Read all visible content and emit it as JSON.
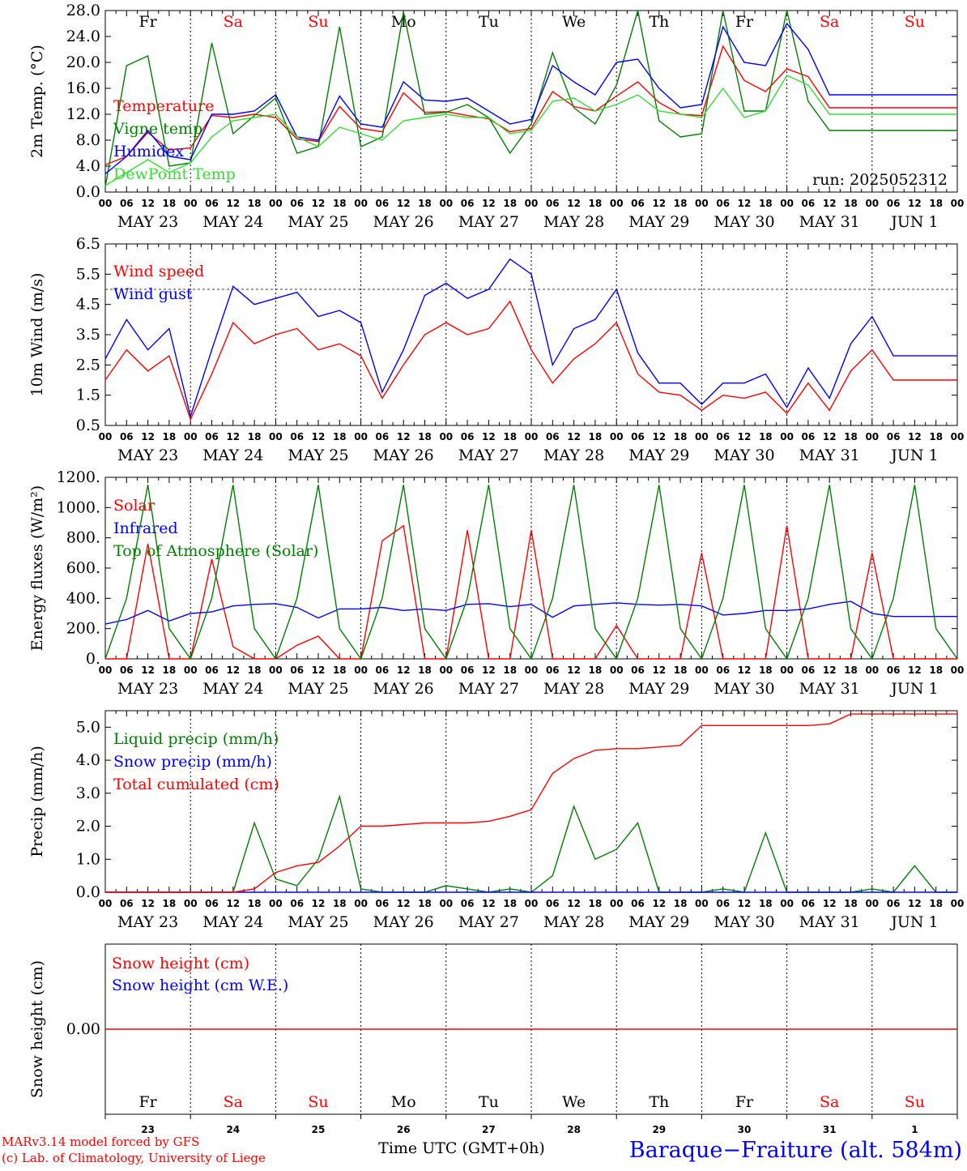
{
  "station": "Baraque−Fraiture (alt. 584m)",
  "run": "run: 2025052312",
  "time_axis_label": "Time UTC (GMT+0h)",
  "credits": [
    "MARv3.14 model forced by GFS",
    "(c) Lab. of Climatology, University of Liege"
  ],
  "colors": {
    "red": "#ff0000",
    "green": "#008000",
    "blue": "#0000ff",
    "lightgreen": "#33dd33"
  },
  "days": [
    {
      "wd": "Fr",
      "date": "MAY 23",
      "num": "23",
      "weekend": false
    },
    {
      "wd": "Sa",
      "date": "MAY 24",
      "num": "24",
      "weekend": true
    },
    {
      "wd": "Su",
      "date": "MAY 25",
      "num": "25",
      "weekend": true
    },
    {
      "wd": "Mo",
      "date": "MAY 26",
      "num": "26",
      "weekend": false
    },
    {
      "wd": "Tu",
      "date": "MAY 27",
      "num": "27",
      "weekend": false
    },
    {
      "wd": "We",
      "date": "MAY 28",
      "num": "28",
      "weekend": false
    },
    {
      "wd": "Th",
      "date": "MAY 29",
      "num": "29",
      "weekend": false
    },
    {
      "wd": "Fr",
      "date": "MAY 30",
      "num": "30",
      "weekend": false
    },
    {
      "wd": "Sa",
      "date": "MAY 31",
      "num": "31",
      "weekend": true
    },
    {
      "wd": "Su",
      "date": "JUN  1",
      "num": "1",
      "weekend": true
    }
  ],
  "hour_labels": [
    "00",
    "06",
    "12",
    "18"
  ],
  "chart_data": [
    {
      "type": "line",
      "ylabel": "2m Temp. (°C)",
      "ylim": [
        0,
        28
      ],
      "yticks": [
        "0.0",
        "4.0",
        "8.0",
        "12.0",
        "16.0",
        "20.0",
        "24.0",
        "28.0"
      ],
      "x_hours": [
        0,
        6,
        12,
        18,
        24,
        30,
        36,
        42,
        48,
        54,
        60,
        66,
        72,
        78,
        84,
        90,
        96,
        102,
        108,
        114,
        120,
        126,
        132,
        138,
        144,
        150,
        156,
        162,
        168,
        174,
        180,
        186,
        192,
        198,
        204,
        210,
        216,
        222,
        228,
        234,
        240
      ],
      "series": [
        {
          "name": "Temperature",
          "color": "#ff0000",
          "values": [
            4.2,
            5.5,
            9.2,
            6.5,
            6.8,
            11.8,
            11.5,
            12.0,
            11.5,
            8.2,
            7.8,
            13.2,
            9.8,
            9.3,
            15.3,
            12.3,
            12.4,
            11.8,
            11.3,
            9.3,
            9.8,
            15.5,
            13.2,
            12.5,
            14.8,
            17.0,
            13.8,
            12.0,
            11.8,
            22.5,
            17.2,
            15.5,
            19.0,
            17.8,
            13.0,
            13.0,
            13.0,
            13.0,
            13.0,
            13.0,
            13.0
          ]
        },
        {
          "name": "Vigne temp",
          "color": "#008000",
          "values": [
            0.8,
            19.5,
            21.0,
            4.0,
            4.5,
            23.0,
            9.0,
            11.8,
            14.5,
            6.0,
            7.0,
            25.5,
            7.0,
            8.5,
            27.8,
            12.0,
            12.3,
            13.5,
            11.5,
            6.0,
            10.5,
            21.5,
            13.0,
            10.5,
            16.5,
            28.0,
            11.0,
            8.5,
            9.0,
            28.0,
            12.5,
            12.5,
            28.0,
            14.0,
            9.5,
            9.5,
            9.5,
            9.5,
            9.5,
            9.5,
            9.5
          ]
        },
        {
          "name": "Humidex",
          "color": "#0000ff",
          "values": [
            2.8,
            5.5,
            9.5,
            5.5,
            5.0,
            12.0,
            12.0,
            12.5,
            15.0,
            8.5,
            8.0,
            14.8,
            10.5,
            10.0,
            17.0,
            14.2,
            14.0,
            14.5,
            12.5,
            10.5,
            11.2,
            19.5,
            17.0,
            15.0,
            20.0,
            20.5,
            16.0,
            13.0,
            13.5,
            25.5,
            20.0,
            19.5,
            26.0,
            22.0,
            15.0,
            15.0,
            15.0,
            15.0,
            15.0,
            15.0,
            15.0
          ]
        },
        {
          "name": "DewPoint Temp",
          "color": "#33dd33",
          "values": [
            1.0,
            3.0,
            5.0,
            3.0,
            4.5,
            8.5,
            11.0,
            11.5,
            12.0,
            8.5,
            7.0,
            10.0,
            9.0,
            8.0,
            11.0,
            11.5,
            12.0,
            11.5,
            11.5,
            9.0,
            9.5,
            14.0,
            14.5,
            12.5,
            13.5,
            15.0,
            12.5,
            12.0,
            11.5,
            16.0,
            11.5,
            12.5,
            18.0,
            16.5,
            12.0,
            12.0,
            12.0,
            12.0,
            12.0,
            12.0,
            12.0
          ]
        }
      ]
    },
    {
      "type": "line",
      "ylabel": "10m Wind (m/s)",
      "ylim": [
        0.5,
        6.5
      ],
      "yticks": [
        "0.5",
        "1.5",
        "2.5",
        "3.5",
        "4.5",
        "5.5",
        "6.5"
      ],
      "hline": 5.0,
      "x_hours": [
        0,
        6,
        12,
        18,
        24,
        30,
        36,
        42,
        48,
        54,
        60,
        66,
        72,
        78,
        84,
        90,
        96,
        102,
        108,
        114,
        120,
        126,
        132,
        138,
        144,
        150,
        156,
        162,
        168,
        174,
        180,
        186,
        192,
        198,
        204,
        210,
        216,
        222,
        228,
        234,
        240
      ],
      "series": [
        {
          "name": "Wind speed",
          "color": "#ff0000",
          "values": [
            2.0,
            3.0,
            2.3,
            2.8,
            0.7,
            2.2,
            3.9,
            3.2,
            3.5,
            3.7,
            3.0,
            3.2,
            2.8,
            1.4,
            2.5,
            3.5,
            3.9,
            3.5,
            3.7,
            4.6,
            3.0,
            1.9,
            2.7,
            3.2,
            3.9,
            2.2,
            1.6,
            1.5,
            1.0,
            1.5,
            1.4,
            1.6,
            0.9,
            1.9,
            1.0,
            2.3,
            3.0,
            2.0,
            2.0,
            2.0,
            2.0
          ]
        },
        {
          "name": "Wind gust",
          "color": "#0000ff",
          "values": [
            2.7,
            4.0,
            3.0,
            3.7,
            0.8,
            3.0,
            5.1,
            4.5,
            4.7,
            4.9,
            4.1,
            4.3,
            3.9,
            1.6,
            3.0,
            4.8,
            5.2,
            4.7,
            5.0,
            6.0,
            5.5,
            2.5,
            3.7,
            4.0,
            5.0,
            2.9,
            1.9,
            1.9,
            1.2,
            1.9,
            1.9,
            2.2,
            1.1,
            2.4,
            1.4,
            3.2,
            4.1,
            2.8,
            2.8,
            2.8,
            2.8
          ]
        }
      ]
    },
    {
      "type": "line",
      "ylabel": "Energy fluxes (W/m²)",
      "ylim": [
        0,
        1200
      ],
      "yticks": [
        "0.",
        "200.",
        "400.",
        "600.",
        "800.",
        "1000.",
        "1200."
      ],
      "x_hours": [
        0,
        6,
        12,
        18,
        24,
        30,
        36,
        42,
        48,
        54,
        60,
        66,
        72,
        78,
        84,
        90,
        96,
        102,
        108,
        114,
        120,
        126,
        132,
        138,
        144,
        150,
        156,
        162,
        168,
        174,
        180,
        186,
        192,
        198,
        204,
        210,
        216,
        222,
        228,
        234,
        240
      ],
      "series": [
        {
          "name": "Solar",
          "color": "#ff0000",
          "values": [
            0,
            0,
            760,
            0,
            0,
            660,
            80,
            0,
            0,
            90,
            150,
            0,
            0,
            780,
            880,
            0,
            0,
            850,
            0,
            0,
            850,
            0,
            0,
            0,
            220,
            0,
            0,
            0,
            700,
            0,
            0,
            0,
            880,
            0,
            0,
            0,
            700,
            0,
            0,
            0,
            0
          ]
        },
        {
          "name": "Infrared",
          "color": "#0000ff",
          "values": [
            230,
            260,
            320,
            250,
            300,
            310,
            350,
            360,
            365,
            340,
            270,
            330,
            330,
            340,
            320,
            330,
            320,
            360,
            365,
            345,
            360,
            275,
            350,
            360,
            370,
            360,
            355,
            360,
            350,
            290,
            300,
            320,
            320,
            330,
            360,
            380,
            300,
            280,
            280,
            280,
            280
          ]
        },
        {
          "name": "Top of Atmosphere (Solar)",
          "color": "#008000",
          "values": [
            0,
            400,
            1150,
            200,
            0,
            400,
            1150,
            200,
            0,
            400,
            1150,
            200,
            0,
            400,
            1150,
            200,
            0,
            400,
            1150,
            200,
            0,
            400,
            1150,
            200,
            0,
            400,
            1150,
            200,
            0,
            400,
            1150,
            200,
            0,
            400,
            1150,
            200,
            0,
            400,
            1150,
            200,
            0
          ]
        }
      ]
    },
    {
      "type": "line",
      "ylabel": "Precip (mm/h)",
      "ylim": [
        0,
        5.5
      ],
      "yticks": [
        "0.0",
        "1.0",
        "2.0",
        "3.0",
        "4.0",
        "5.0"
      ],
      "x_hours": [
        0,
        6,
        12,
        18,
        24,
        30,
        36,
        42,
        48,
        54,
        60,
        66,
        72,
        78,
        84,
        90,
        96,
        102,
        108,
        114,
        120,
        126,
        132,
        138,
        144,
        150,
        156,
        162,
        168,
        174,
        180,
        186,
        192,
        198,
        204,
        210,
        216,
        222,
        228,
        234,
        240
      ],
      "series": [
        {
          "name": "Liquid precip (mm/h)",
          "color": "#008000",
          "values": [
            0,
            0,
            0,
            0,
            0,
            0,
            0,
            2.1,
            0.4,
            0.2,
            1.0,
            2.9,
            0.1,
            0,
            0,
            0,
            0.2,
            0.1,
            0,
            0.1,
            0,
            0.5,
            2.6,
            1.0,
            1.3,
            2.1,
            0,
            0,
            0,
            0.1,
            0,
            1.8,
            0,
            0,
            0,
            0,
            0.1,
            0,
            0.8,
            0,
            0
          ]
        },
        {
          "name": "Snow precip (mm/h)",
          "color": "#0000ff",
          "values": [
            0,
            0,
            0,
            0,
            0,
            0,
            0,
            0,
            0,
            0,
            0,
            0,
            0,
            0,
            0,
            0,
            0,
            0,
            0,
            0,
            0,
            0,
            0,
            0,
            0,
            0,
            0,
            0,
            0,
            0,
            0,
            0,
            0,
            0,
            0,
            0,
            0,
            0,
            0,
            0,
            0
          ]
        },
        {
          "name": "Total cumulated (cm)",
          "color": "#ff0000",
          "values": [
            0,
            0,
            0,
            0,
            0,
            0,
            0,
            0.1,
            0.6,
            0.8,
            0.9,
            1.4,
            2.0,
            2.0,
            2.05,
            2.1,
            2.1,
            2.1,
            2.15,
            2.3,
            2.5,
            3.6,
            4.05,
            4.3,
            4.35,
            4.35,
            4.4,
            4.45,
            5.05,
            5.05,
            5.05,
            5.05,
            5.05,
            5.05,
            5.1,
            5.4,
            5.4,
            5.4,
            5.4,
            5.4,
            5.4
          ]
        }
      ]
    },
    {
      "type": "line",
      "ylabel": "Snow height (cm)",
      "ylim": [
        -1,
        1
      ],
      "yticks": [
        "0.00"
      ],
      "series": [
        {
          "name": "Snow height (cm)",
          "color": "#ff0000",
          "values": [
            0,
            0
          ]
        },
        {
          "name": "Snow height (cm W.E.)",
          "color": "#0000ff",
          "values": []
        }
      ]
    }
  ]
}
